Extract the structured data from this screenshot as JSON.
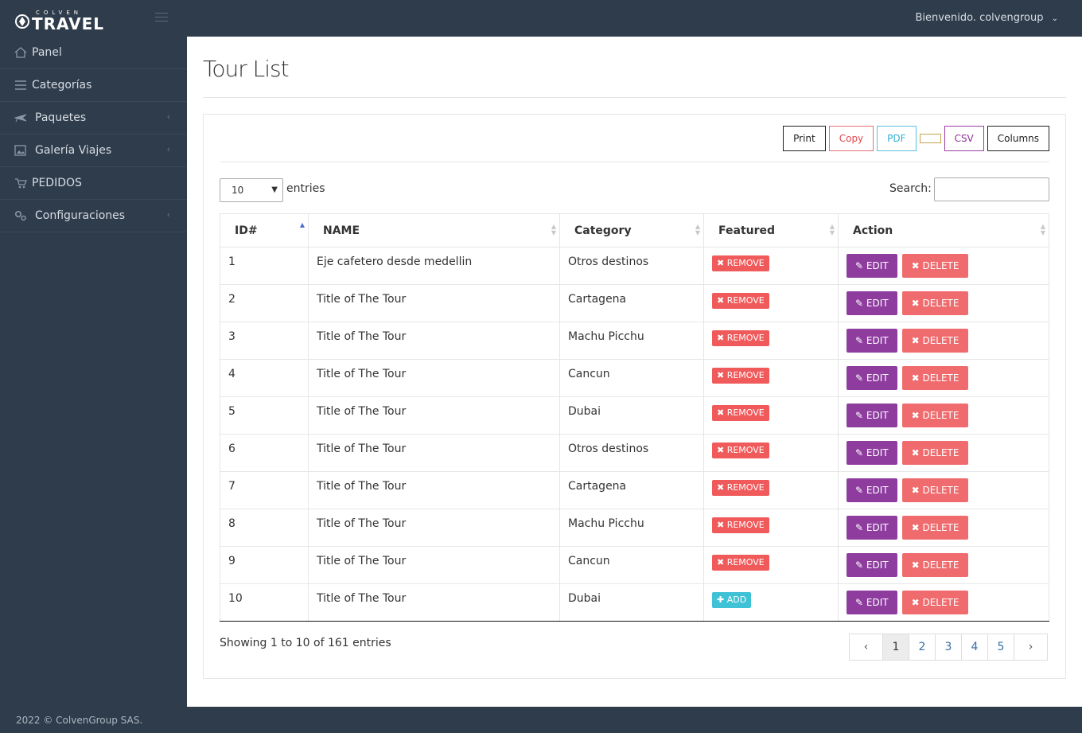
{
  "header": {
    "logo_small": "COLVEN",
    "logo_big": "TRAVEL",
    "user_menu": "Bienvenido. colvengroup"
  },
  "sidebar": {
    "items": [
      {
        "label": "Panel",
        "icon": "home-icon",
        "has_submenu": false
      },
      {
        "label": "Categorías",
        "icon": "list-icon",
        "has_submenu": false
      },
      {
        "label": "Paquetes",
        "icon": "plane-icon",
        "has_submenu": true
      },
      {
        "label": "Galería Viajes",
        "icon": "image-icon",
        "has_submenu": true
      },
      {
        "label": "PEDIDOS",
        "icon": "cart-icon",
        "has_submenu": false
      },
      {
        "label": "Configuraciones",
        "icon": "gears-icon",
        "has_submenu": true
      }
    ]
  },
  "footer": {
    "text": "2022 © ColvenGroup SAS."
  },
  "page": {
    "title": "Tour List"
  },
  "toolbar": {
    "print": "Print",
    "copy": "Copy",
    "pdf": "PDF",
    "excel": "",
    "csv": "CSV",
    "columns": "Columns"
  },
  "table_controls": {
    "length_value": "10",
    "entries_label": "entries",
    "search_label": "Search:",
    "search_value": ""
  },
  "table": {
    "columns": [
      "ID#",
      "NAME",
      "Category",
      "Featured",
      "Action"
    ],
    "rows": [
      {
        "id": "1",
        "name": "Eje cafetero desde medellin",
        "category": "Otros destinos",
        "featured": "REMOVE"
      },
      {
        "id": "2",
        "name": "Title of The Tour",
        "category": "Cartagena",
        "featured": "REMOVE"
      },
      {
        "id": "3",
        "name": "Title of The Tour",
        "category": "Machu Picchu",
        "featured": "REMOVE"
      },
      {
        "id": "4",
        "name": "Title of The Tour",
        "category": "Cancun",
        "featured": "REMOVE"
      },
      {
        "id": "5",
        "name": "Title of The Tour",
        "category": "Dubai",
        "featured": "REMOVE"
      },
      {
        "id": "6",
        "name": "Title of The Tour",
        "category": "Otros destinos",
        "featured": "REMOVE"
      },
      {
        "id": "7",
        "name": "Title of The Tour",
        "category": "Cartagena",
        "featured": "REMOVE"
      },
      {
        "id": "8",
        "name": "Title of The Tour",
        "category": "Machu Picchu",
        "featured": "REMOVE"
      },
      {
        "id": "9",
        "name": "Title of The Tour",
        "category": "Cancun",
        "featured": "REMOVE"
      },
      {
        "id": "10",
        "name": "Title of The Tour",
        "category": "Dubai",
        "featured": "ADD"
      }
    ],
    "edit_label": "EDIT",
    "delete_label": "DELETE"
  },
  "pagination": {
    "info": "Showing 1 to 10 of 161 entries",
    "pages": [
      "1",
      "2",
      "3",
      "4",
      "5"
    ],
    "active": "1",
    "prev": "‹",
    "next": "›"
  },
  "colors": {
    "sidebar_bg": "#2f3c4b",
    "edit": "#8e3d9f",
    "delete": "#f06b6e",
    "remove": "#f05a5b",
    "add": "#3fc1d6"
  }
}
